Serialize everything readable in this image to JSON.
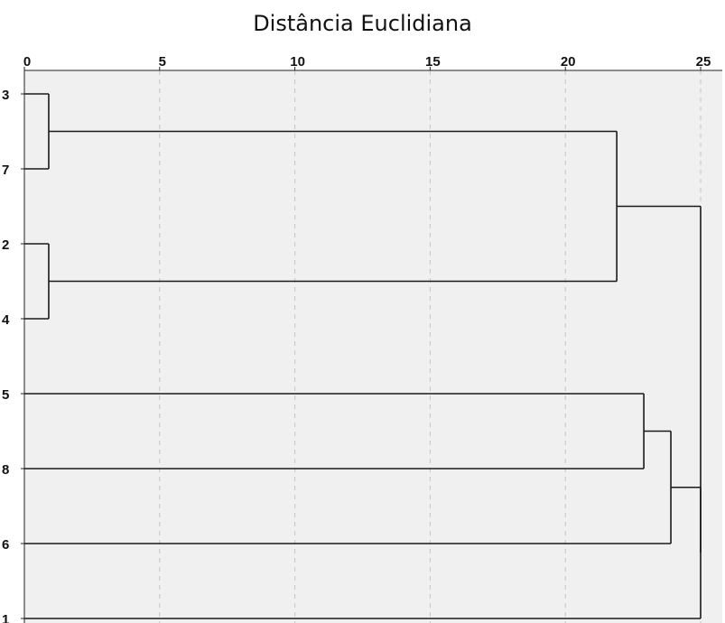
{
  "chart_data": {
    "type": "dendrogram",
    "title": "Distância Euclidiana",
    "orientation": "horizontal",
    "x_axis": {
      "position": "top",
      "ticks": [
        0,
        5,
        10,
        15,
        20,
        25
      ],
      "xlim": [
        0,
        25
      ],
      "grid": "vertical dashed"
    },
    "leaves": [
      "3",
      "7",
      "2",
      "4",
      "5",
      "8",
      "6",
      "1"
    ],
    "merges": [
      {
        "id": "A",
        "children": [
          "3",
          "7"
        ],
        "height": 0.9
      },
      {
        "id": "B",
        "children": [
          "2",
          "4"
        ],
        "height": 0.9
      },
      {
        "id": "C",
        "children": [
          "A",
          "B"
        ],
        "height": 21.9
      },
      {
        "id": "D",
        "children": [
          "5",
          "8"
        ],
        "height": 22.9
      },
      {
        "id": "E",
        "children": [
          "D",
          "6"
        ],
        "height": 23.9
      },
      {
        "id": "F",
        "children": [
          "E",
          "1"
        ],
        "height": 25.0
      },
      {
        "id": "G",
        "children": [
          "C",
          "F"
        ],
        "height": 25.0
      }
    ]
  },
  "colors": {
    "plot_background": "#f0f0f0",
    "line": "#1a1a1a",
    "grid": "#c4c4c4",
    "axis": "#222222"
  }
}
